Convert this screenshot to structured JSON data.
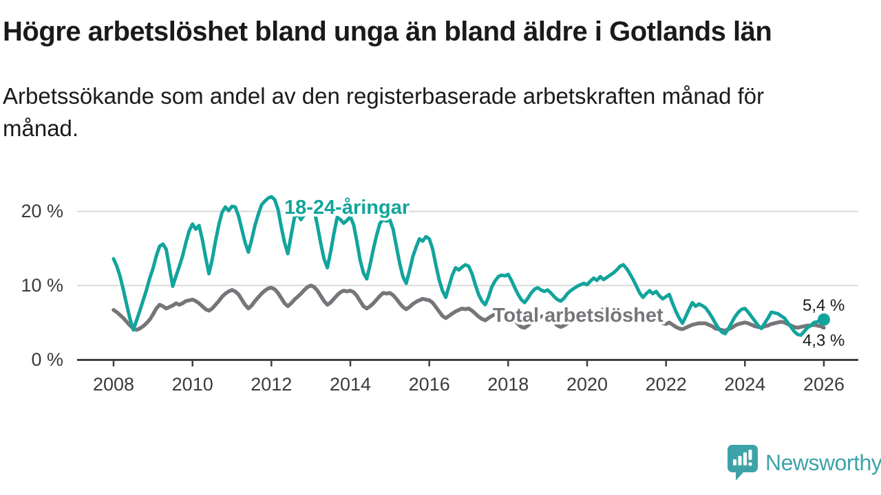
{
  "header": {
    "title": "Högre arbetslöshet bland unga än bland äldre i Gotlands län",
    "subtitle": "Arbetssökande som andel av den registerbaserade arbetskraften månad för månad."
  },
  "chart_data": {
    "type": "line",
    "title": "Högre arbetslöshet bland unga än bland äldre i Gotlands län",
    "subtitle": "Arbetssökande som andel av den registerbaserade arbetskraften månad för månad.",
    "unit": "%",
    "x_start_year": 2008,
    "x_points_per_year": 12,
    "x_end_year": 2026,
    "xlim": [
      2008,
      2026.1
    ],
    "ylim": [
      0,
      23
    ],
    "y_gridlines": [
      10,
      20
    ],
    "y_tick_labels": [
      "0 %",
      "10 %",
      "20 %"
    ],
    "x_tick_labels": [
      "2008",
      "2010",
      "2012",
      "2014",
      "2016",
      "2018",
      "2020",
      "2022",
      "2024",
      "2026"
    ],
    "legend_position": "inline-labels",
    "grid": "horizontal-only",
    "series": [
      {
        "name": "18-24-åringar",
        "color": "#12a49c",
        "values": [
          13.6,
          12.6,
          11.2,
          9.4,
          7.4,
          5.5,
          4.0,
          5.3,
          6.6,
          8.0,
          9.4,
          11.0,
          12.3,
          14.0,
          15.3,
          15.6,
          14.9,
          12.4,
          9.9,
          11.3,
          12.6,
          14.0,
          15.8,
          17.4,
          18.3,
          17.6,
          18.1,
          16.2,
          13.8,
          11.6,
          13.5,
          16.0,
          18.2,
          19.9,
          20.6,
          20.1,
          20.7,
          20.6,
          19.4,
          17.6,
          15.8,
          14.5,
          16.2,
          18.1,
          19.6,
          20.9,
          21.4,
          21.8,
          22.0,
          21.6,
          20.3,
          17.9,
          15.8,
          14.3,
          16.8,
          19.2,
          19.7,
          18.9,
          19.6,
          20.2,
          20.5,
          20.2,
          18.1,
          15.7,
          13.6,
          12.4,
          14.5,
          17.0,
          19.2,
          18.9,
          18.4,
          18.8,
          19.3,
          18.2,
          15.9,
          13.4,
          11.7,
          10.9,
          12.8,
          14.9,
          16.8,
          18.4,
          18.9,
          18.7,
          18.9,
          17.6,
          15.3,
          13.0,
          11.2,
          10.3,
          12.0,
          13.9,
          15.2,
          16.3,
          16.0,
          16.6,
          16.3,
          15.0,
          12.8,
          10.8,
          9.3,
          8.4,
          9.9,
          11.4,
          12.4,
          12.1,
          12.5,
          12.8,
          12.6,
          11.6,
          10.1,
          8.8,
          7.9,
          7.4,
          8.4,
          9.8,
          10.6,
          11.2,
          11.4,
          11.3,
          11.5,
          10.7,
          9.7,
          8.8,
          8.1,
          7.7,
          8.3,
          9.0,
          9.5,
          9.7,
          9.4,
          9.2,
          9.4,
          9.0,
          8.5,
          8.1,
          7.9,
          8.3,
          8.9,
          9.3,
          9.6,
          9.9,
          10.1,
          10.3,
          10.1,
          10.6,
          11.0,
          10.7,
          11.2,
          10.8,
          11.1,
          11.4,
          11.7,
          12.1,
          12.6,
          12.8,
          12.3,
          11.6,
          10.8,
          9.9,
          9.0,
          8.4,
          8.9,
          9.3,
          8.9,
          9.2,
          8.6,
          8.2,
          8.5,
          8.8,
          7.6,
          6.5,
          5.6,
          4.9,
          5.8,
          6.8,
          7.7,
          7.2,
          7.5,
          7.3,
          7.0,
          6.4,
          5.7,
          4.9,
          4.2,
          3.7,
          3.5,
          4.2,
          5.0,
          5.8,
          6.4,
          6.8,
          6.9,
          6.4,
          5.8,
          5.2,
          4.6,
          4.2,
          4.9,
          5.6,
          6.4,
          6.3,
          6.2,
          5.9,
          5.6,
          5.0,
          4.4,
          3.8,
          3.4,
          3.3,
          3.8,
          4.3,
          4.6,
          5.0,
          5.1,
          5.3,
          5.4
        ]
      },
      {
        "name": "Total arbetslöshet",
        "color": "#76767a",
        "values": [
          6.7,
          6.4,
          6.0,
          5.6,
          5.1,
          4.6,
          4.2,
          4.0,
          4.2,
          4.5,
          4.9,
          5.4,
          6.1,
          6.9,
          7.4,
          7.2,
          6.9,
          7.1,
          7.3,
          7.6,
          7.4,
          7.6,
          7.9,
          8.0,
          8.1,
          7.9,
          7.6,
          7.2,
          6.8,
          6.6,
          6.9,
          7.4,
          7.9,
          8.5,
          8.9,
          9.2,
          9.4,
          9.2,
          8.8,
          8.1,
          7.4,
          6.9,
          7.3,
          7.9,
          8.4,
          8.9,
          9.3,
          9.6,
          9.7,
          9.5,
          9.0,
          8.3,
          7.6,
          7.2,
          7.6,
          8.1,
          8.5,
          8.9,
          9.4,
          9.8,
          10.0,
          9.8,
          9.3,
          8.6,
          7.9,
          7.4,
          7.7,
          8.2,
          8.7,
          9.1,
          9.3,
          9.2,
          9.3,
          9.1,
          8.6,
          7.9,
          7.2,
          6.9,
          7.2,
          7.6,
          8.1,
          8.6,
          9.0,
          8.9,
          9.0,
          8.7,
          8.2,
          7.6,
          7.1,
          6.8,
          7.1,
          7.5,
          7.8,
          8.0,
          8.2,
          8.1,
          8.0,
          7.7,
          7.1,
          6.5,
          5.9,
          5.6,
          5.9,
          6.2,
          6.5,
          6.7,
          6.9,
          6.8,
          6.9,
          6.6,
          6.2,
          5.8,
          5.5,
          5.3,
          5.6,
          5.9,
          6.1,
          6.3,
          6.3,
          6.2,
          6.2,
          5.9,
          5.3,
          4.8,
          4.4,
          4.3,
          4.6,
          5.0,
          5.3,
          5.6,
          5.8,
          5.9,
          5.8,
          5.5,
          5.0,
          4.6,
          4.4,
          4.6,
          4.9,
          5.2,
          5.4,
          5.6,
          5.7,
          5.8,
          5.8,
          6.0,
          6.2,
          6.4,
          6.6,
          6.8,
          6.9,
          7.0,
          6.9,
          6.8,
          6.6,
          6.3,
          6.0,
          5.7,
          5.4,
          5.4,
          5.3,
          5.2,
          5.3,
          5.4,
          5.3,
          5.2,
          5.1,
          4.9,
          4.8,
          5.0,
          4.7,
          4.4,
          4.2,
          4.1,
          4.3,
          4.5,
          4.7,
          4.8,
          4.9,
          4.9,
          4.9,
          4.7,
          4.5,
          4.2,
          4.1,
          4.0,
          3.9,
          4.1,
          4.3,
          4.6,
          4.8,
          4.9,
          5.0,
          4.9,
          4.7,
          4.5,
          4.4,
          4.3,
          4.5,
          4.6,
          4.8,
          4.9,
          5.0,
          5.1,
          5.0,
          4.8,
          4.6,
          4.4,
          4.3,
          4.4,
          4.5,
          4.6,
          4.6,
          4.7,
          4.6,
          4.5,
          4.3
        ]
      }
    ],
    "annotations": {
      "young_series_label": "18-24-åringar",
      "total_series_label": "Total arbetslöshet",
      "young_end_label": "5,4 %",
      "total_end_label": "4,3 %"
    }
  },
  "branding": {
    "logo_text": "Newsworthy",
    "logo_color": "#3ea3a8",
    "logo_icon": "bar-chart-speech-bubble"
  }
}
